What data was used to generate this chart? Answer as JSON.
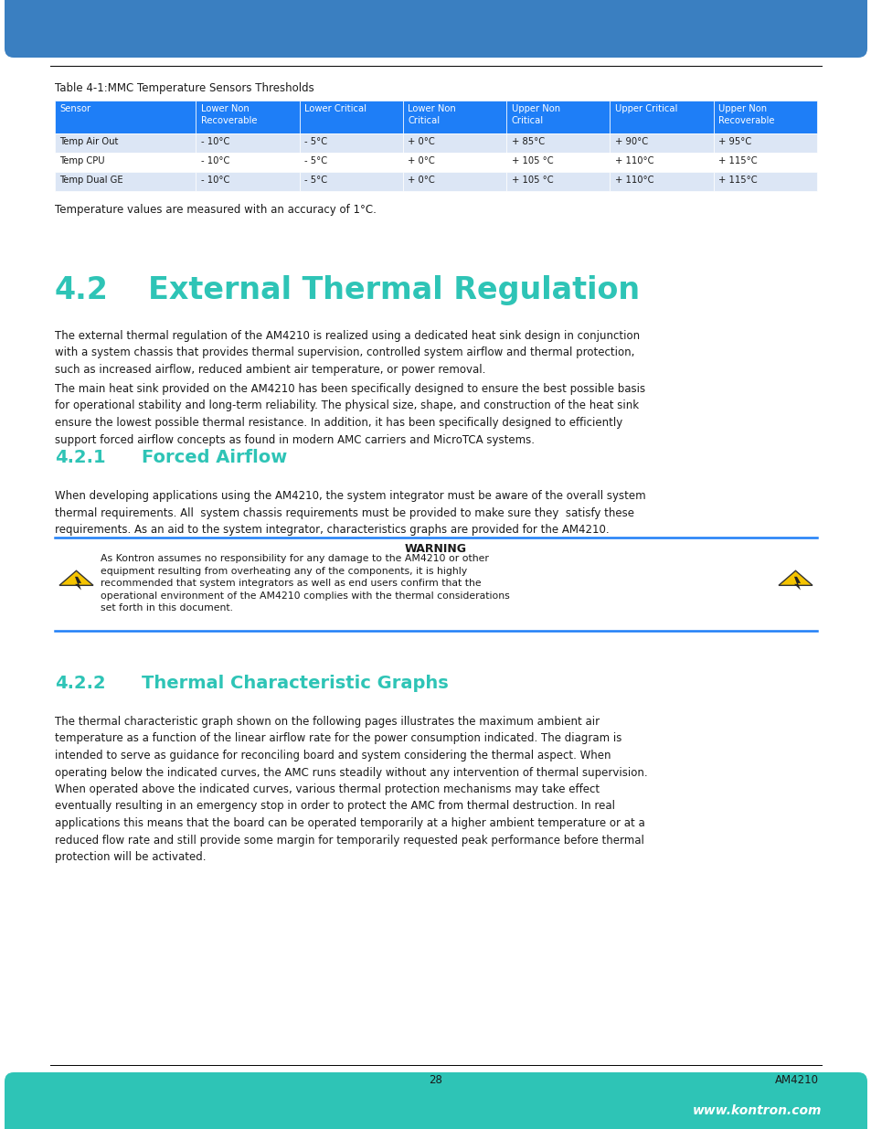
{
  "page_width": 9.54,
  "page_height": 12.35,
  "top_bar_color": "#3a7fc1",
  "bottom_bar_color": "#2ec4b6",
  "table_title": "Table 4-1:MMC Temperature Sensors Thresholds",
  "table_header": [
    "Sensor",
    "Lower Non\nRecoverable",
    "Lower Critical",
    "Lower Non\nCritical",
    "Upper Non\nCritical",
    "Upper Critical",
    "Upper Non\nRecoverable"
  ],
  "table_header_bg": "#1e7ef7",
  "table_header_text": "#ffffff",
  "table_row_bg_even": "#dce6f5",
  "table_row_bg_odd": "#ffffff",
  "table_rows": [
    [
      "Temp Air Out",
      "- 10°C",
      "- 5°C",
      "+ 0°C",
      "+ 85°C",
      "+ 90°C",
      "+ 95°C"
    ],
    [
      "Temp CPU",
      "- 10°C",
      "- 5°C",
      "+ 0°C",
      "+ 105 °C",
      "+ 110°C",
      "+ 115°C"
    ],
    [
      "Temp Dual GE",
      "- 10°C",
      "- 5°C",
      "+ 0°C",
      "+ 105 °C",
      "+ 110°C",
      "+ 115°C"
    ]
  ],
  "temp_note": "Temperature values are measured with an accuracy of 1°C.",
  "section_42_number": "4.2",
  "section_42_title": "External Thermal Regulation",
  "section_42_color": "#2ec4b6",
  "section_42_text1": "The external thermal regulation of the AM4210 is realized using a dedicated heat sink design in conjunction\nwith a system chassis that provides thermal supervision, controlled system airflow and thermal protection,\nsuch as increased airflow, reduced ambient air temperature, or power removal.",
  "section_42_text2": "The main heat sink provided on the AM4210 has been specifically designed to ensure the best possible basis\nfor operational stability and long-term reliability. The physical size, shape, and construction of the heat sink\nensure the lowest possible thermal resistance. In addition, it has been specifically designed to efficiently\nsupport forced airflow concepts as found in modern AMC carriers and MicroTCA systems.",
  "section_421_number": "4.2.1",
  "section_421_title": "Forced Airflow",
  "section_421_color": "#2ec4b6",
  "section_421_text": "When developing applications using the AM4210, the system integrator must be aware of the overall system\nthermal requirements. All  system chassis requirements must be provided to make sure they  satisfy these\nrequirements. As an aid to the system integrator, characteristics graphs are provided for the AM4210.",
  "warning_title": "WARNING",
  "warning_text": "As Kontron assumes no responsibility for any damage to the AM4210 or other\nequipment resulting from overheating any of the components, it is highly\nrecommended that system integrators as well as end users confirm that the\noperational environment of the AM4210 complies with the thermal considerations\nset forth in this document.",
  "warning_border_color": "#1e7ef7",
  "section_422_number": "4.2.2",
  "section_422_title": "Thermal Characteristic Graphs",
  "section_422_color": "#2ec4b6",
  "section_422_text": "The thermal characteristic graph shown on the following pages illustrates the maximum ambient air\ntemperature as a function of the linear airflow rate for the power consumption indicated. The diagram is\nintended to serve as guidance for reconciling board and system considering the thermal aspect. When\noperating below the indicated curves, the AMC runs steadily without any intervention of thermal supervision.\nWhen operated above the indicated curves, various thermal protection mechanisms may take effect\neventually resulting in an emergency stop in order to protect the AMC from thermal destruction. In real\napplications this means that the board can be operated temporarily at a higher ambient temperature or at a\nreduced flow rate and still provide some margin for temporarily requested peak performance before thermal\nprotection will be activated.",
  "page_number": "28",
  "page_model": "AM4210",
  "footer_url": "www.kontron.com",
  "text_color": "#1a1a1a",
  "body_font_size": 8.5,
  "line_color": "#000000"
}
